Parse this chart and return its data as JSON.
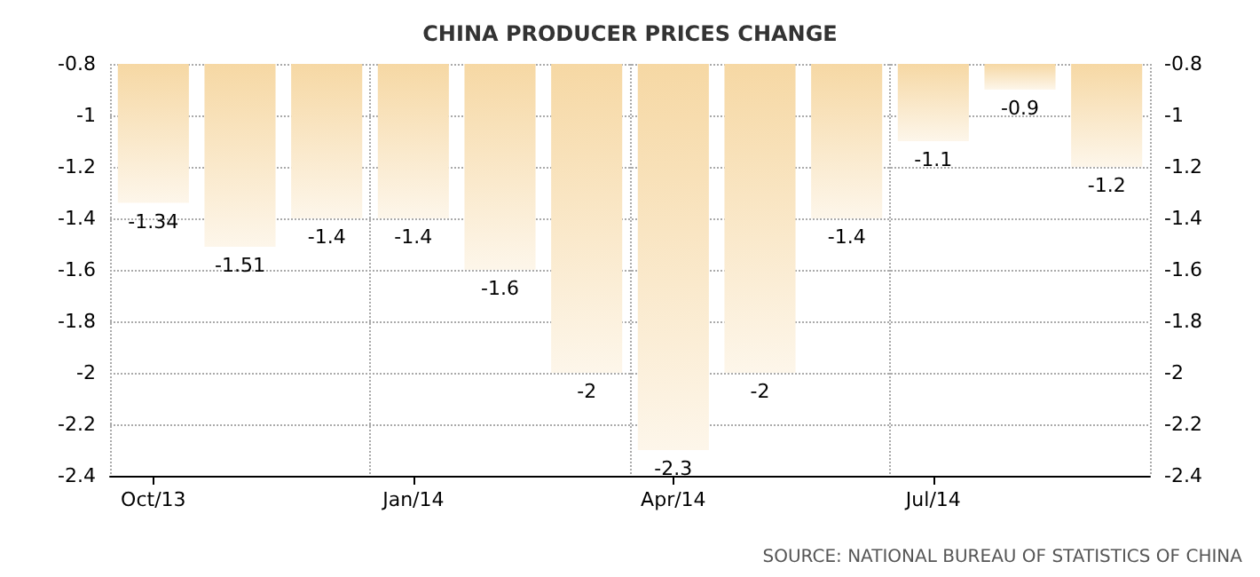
{
  "chart_data": {
    "type": "bar",
    "title": "CHINA PRODUCER PRICES CHANGE",
    "categories": [
      "Oct/13",
      null,
      null,
      "Jan/14",
      null,
      null,
      "Apr/14",
      null,
      null,
      "Jul/14",
      null,
      null
    ],
    "values": [
      -1.34,
      -1.51,
      -1.4,
      -1.4,
      -1.6,
      -2,
      -2.3,
      -2,
      -1.4,
      -1.1,
      -0.9,
      -1.2
    ],
    "color": "#f6d8a4",
    "data_labels": true,
    "ylim": [
      -2.4,
      -0.8
    ],
    "yticks": [
      -2.4,
      -2.2,
      -2,
      -1.8,
      -1.6,
      -1.4,
      -1.2,
      -1,
      -0.8
    ],
    "y2lim": [
      -2.4,
      -0.8
    ],
    "y2ticks": [
      -2.4,
      -2.2,
      -2,
      -1.8,
      -1.6,
      -1.4,
      -1.2,
      -1,
      -0.8
    ],
    "grid": true,
    "annotations": [
      "SOURCE: NATIONAL BUREAU OF STATISTICS OF CHINA"
    ]
  }
}
